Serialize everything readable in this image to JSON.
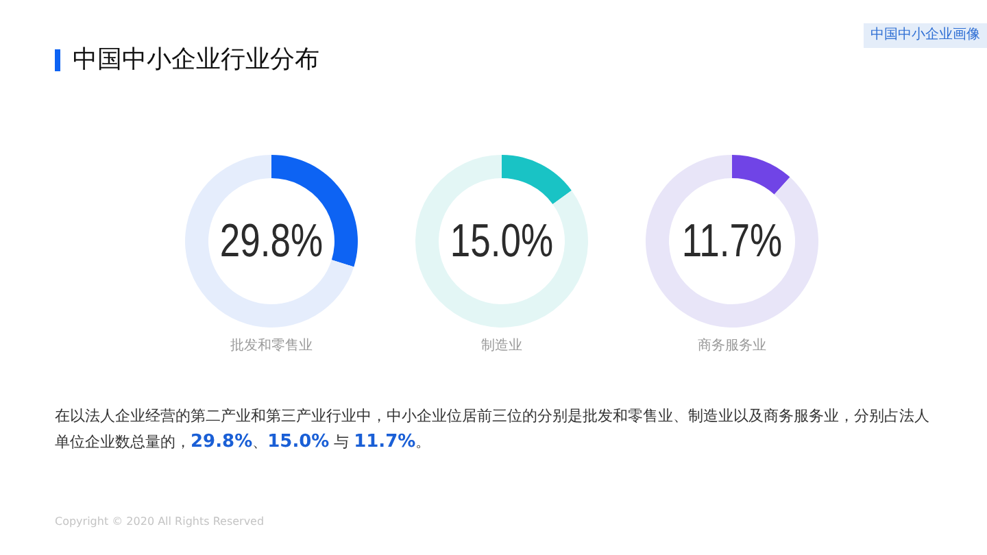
{
  "chart_data": [
    {
      "type": "other",
      "title": "中国中小企业行业分布",
      "annotations": [
        "中国中小企业画像"
      ]
    },
    {
      "type": "donut",
      "xlabel": "批发和零售业",
      "categories": [
        null,
        null
      ],
      "values": [
        29.8,
        70.2
      ],
      "colors": [
        "#0d63f3",
        "#e5edfc"
      ],
      "value_labels": [
        "29.8%",
        null
      ]
    },
    {
      "type": "donut",
      "xlabel": "制造业",
      "categories": [
        null,
        null
      ],
      "values": [
        15.0,
        85.0
      ],
      "colors": [
        "#19c3c5",
        "#e3f6f5"
      ],
      "value_labels": [
        "15.0%",
        null
      ]
    },
    {
      "type": "donut",
      "xlabel": "商务服务业",
      "categories": [
        null,
        null
      ],
      "values": [
        11.7,
        88.3
      ],
      "colors": [
        "#7044e6",
        "#e8e5f8"
      ],
      "value_labels": [
        "11.7%",
        null
      ]
    },
    {
      "type": "other",
      "annotations": [
        "在以法人企业经营的第二产业和第三产业行业中，中小企业位居前三位的分别是批发和零售业、制造业以及商务服务业，分别占法人单位企业数总量的，29.8%、15.0% 与 11.7%。",
        "Copyright © 2020 All Rights Reserved"
      ]
    }
  ]
}
